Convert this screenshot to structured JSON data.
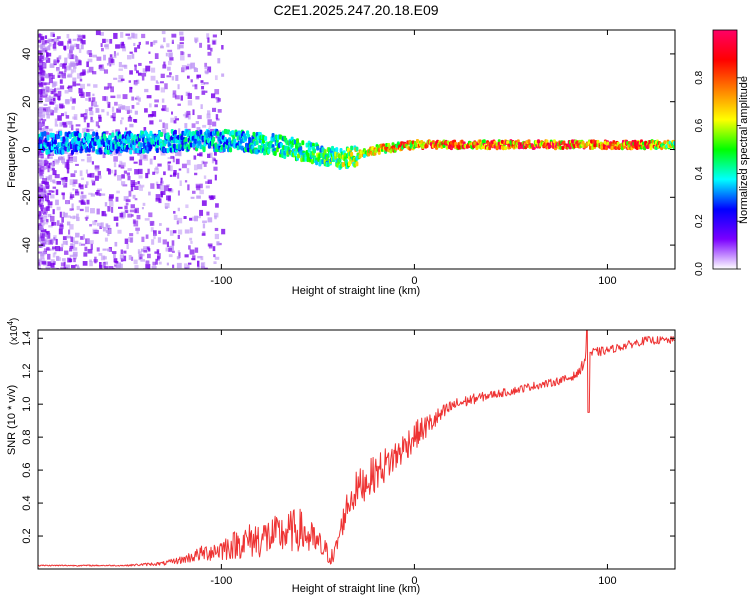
{
  "title": "C2E1.2025.247.20.18.E09",
  "chart_data": [
    {
      "type": "heatmap",
      "xlabel": "Height of straight line (km)",
      "ylabel": "Frequency (Hz)",
      "xlim": [
        -195,
        135
      ],
      "ylim": [
        -50,
        50
      ],
      "xticks": [
        -100,
        0,
        100
      ],
      "yticks": [
        -40,
        -20,
        0,
        20,
        40
      ],
      "colorbar": {
        "label": "Normalized spectral amplitude",
        "range": [
          0,
          1
        ],
        "ticks": [
          "0.0",
          "0.2",
          "0.4",
          "0.6",
          "0.8"
        ],
        "colors": [
          "#ffffff",
          "#7a00ff",
          "#0000ff",
          "#00ffff",
          "#00ff00",
          "#ffff00",
          "#ff8000",
          "#ff0000",
          "#ff0066"
        ]
      },
      "ridge": {
        "x": [
          -195,
          -150,
          -120,
          -100,
          -80,
          -60,
          -45,
          -38,
          -30,
          -20,
          -10,
          0,
          20,
          40,
          60,
          80,
          100,
          120,
          135
        ],
        "freq": [
          3,
          3,
          4,
          4,
          3,
          0,
          -3,
          -4,
          -2,
          0,
          1,
          2,
          2,
          2,
          2,
          2,
          2,
          2,
          2
        ],
        "amplitude": [
          0.35,
          0.38,
          0.4,
          0.42,
          0.45,
          0.5,
          0.55,
          0.6,
          0.65,
          0.72,
          0.8,
          0.85,
          0.88,
          0.9,
          0.9,
          0.92,
          0.9,
          0.88,
          0.6
        ]
      }
    },
    {
      "type": "line",
      "xlabel": "Height of straight line (km)",
      "ylabel": "SNR (10 * v/v)",
      "scale_label": "(x10",
      "scale_exp": "4",
      "scale_close": ")",
      "xlim": [
        -195,
        135
      ],
      "ylim": [
        0,
        1.45
      ],
      "xticks": [
        -100,
        0,
        100
      ],
      "yticks": [
        0.2,
        0.4,
        0.6,
        0.8,
        1.0,
        1.2,
        1.4
      ],
      "ytick_labels": [
        "0.2",
        "0.4",
        "0.6",
        "0.8",
        "1.0",
        "1.2",
        "1.4"
      ],
      "series": [
        {
          "name": "SNR",
          "color": "#ee3333",
          "x": [
            -195,
            -150,
            -130,
            -120,
            -110,
            -100,
            -90,
            -80,
            -70,
            -60,
            -50,
            -42,
            -35,
            -30,
            -20,
            -10,
            0,
            10,
            20,
            30,
            40,
            50,
            60,
            70,
            80,
            85,
            88,
            90,
            92,
            100,
            110,
            120,
            135
          ],
          "y": [
            0.02,
            0.02,
            0.03,
            0.05,
            0.08,
            0.1,
            0.13,
            0.15,
            0.17,
            0.2,
            0.12,
            0.05,
            0.35,
            0.45,
            0.55,
            0.65,
            0.78,
            0.88,
            0.98,
            1.02,
            1.05,
            1.07,
            1.1,
            1.12,
            1.15,
            1.18,
            1.25,
            1.3,
            1.3,
            1.32,
            1.35,
            1.38,
            1.38
          ],
          "noise": [
            0.005,
            0.005,
            0.015,
            0.03,
            0.06,
            0.09,
            0.12,
            0.15,
            0.15,
            0.17,
            0.12,
            0.06,
            0.12,
            0.14,
            0.14,
            0.13,
            0.11,
            0.08,
            0.05,
            0.04,
            0.03,
            0.03,
            0.03,
            0.03,
            0.03,
            0.03,
            0.05,
            0.05,
            0.04,
            0.03,
            0.03,
            0.03,
            0.03
          ]
        }
      ]
    }
  ]
}
